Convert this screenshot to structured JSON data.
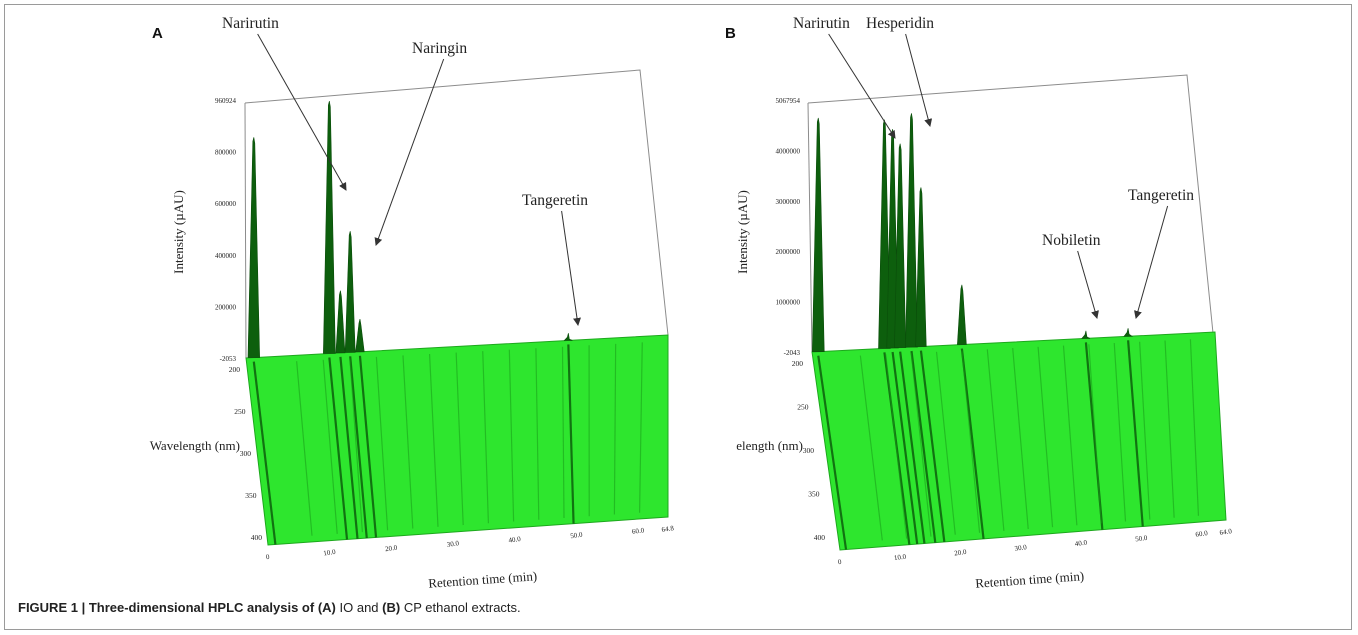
{
  "figure": {
    "caption": {
      "figure_label": "FIGURE 1 | Three-dimensional HPLC analysis of",
      "a_label": "(A)",
      "a_text": "IO and",
      "b_label": "(B)",
      "b_text": "CP ethanol extracts."
    }
  },
  "colors": {
    "surface": "#2ee62e",
    "peak": "#0d5f0d",
    "frame": "#8c8c8c"
  },
  "chart_data": [
    {
      "type": "area",
      "panel": "A",
      "xlabel": "Retention time (min)",
      "ylabel": "Intensity (µAU)",
      "zlabel": "Wavelength (nm)",
      "x_ticks": [
        "0",
        "10.0",
        "20.0",
        "30.0",
        "40.0",
        "50.0",
        "60.0",
        "64.8"
      ],
      "y_ticks": [
        "-2053",
        "200000",
        "400000",
        "600000",
        "800000",
        "960924"
      ],
      "z_ticks": [
        "200",
        "250",
        "300",
        "350",
        "400"
      ],
      "xlim": [
        0,
        64.8
      ],
      "ylim": [
        -2053,
        960924
      ],
      "peaks": [
        {
          "rt": 1.2,
          "intensity": 820000
        },
        {
          "rt": 12.8,
          "intensity": 940000
        },
        {
          "rt": 14.5,
          "intensity": 230000
        },
        {
          "rt": 16.0,
          "intensity": 450000
        },
        {
          "rt": 17.5,
          "intensity": 120000
        },
        {
          "rt": 49.5,
          "intensity": 25000
        }
      ],
      "annotations": [
        {
          "text": "Narirutin",
          "rt": 12.8
        },
        {
          "text": "Naringin",
          "rt": 16.0
        },
        {
          "text": "Tangeretin",
          "rt": 49.5
        }
      ]
    },
    {
      "type": "area",
      "panel": "B",
      "xlabel": "Retention time (min)",
      "ylabel": "Intensity (µAU)",
      "zlabel": "elength (nm)",
      "x_ticks": [
        "0",
        "10.0",
        "20.0",
        "30.0",
        "40.0",
        "50.0",
        "60.0",
        "64.0"
      ],
      "y_ticks": [
        "-2043",
        "1000000",
        "2000000",
        "3000000",
        "4000000",
        "5067954"
      ],
      "z_ticks": [
        "200",
        "250",
        "300",
        "350",
        "400"
      ],
      "xlim": [
        0,
        64.0
      ],
      "ylim": [
        -2043,
        5067954
      ],
      "peaks": [
        {
          "rt": 1.0,
          "intensity": 4700000
        },
        {
          "rt": 11.5,
          "intensity": 4600000
        },
        {
          "rt": 12.8,
          "intensity": 4400000
        },
        {
          "rt": 14.0,
          "intensity": 4100000
        },
        {
          "rt": 15.8,
          "intensity": 4700000
        },
        {
          "rt": 17.3,
          "intensity": 3200000
        },
        {
          "rt": 23.8,
          "intensity": 1200000
        },
        {
          "rt": 43.5,
          "intensity": 150000
        },
        {
          "rt": 50.2,
          "intensity": 160000
        }
      ],
      "annotations": [
        {
          "text": "Narirutin",
          "rt": 12.8
        },
        {
          "text": "Hesperidin",
          "rt": 15.8
        },
        {
          "text": "Nobiletin",
          "rt": 43.5
        },
        {
          "text": "Tangeretin",
          "rt": 50.2
        }
      ]
    }
  ]
}
